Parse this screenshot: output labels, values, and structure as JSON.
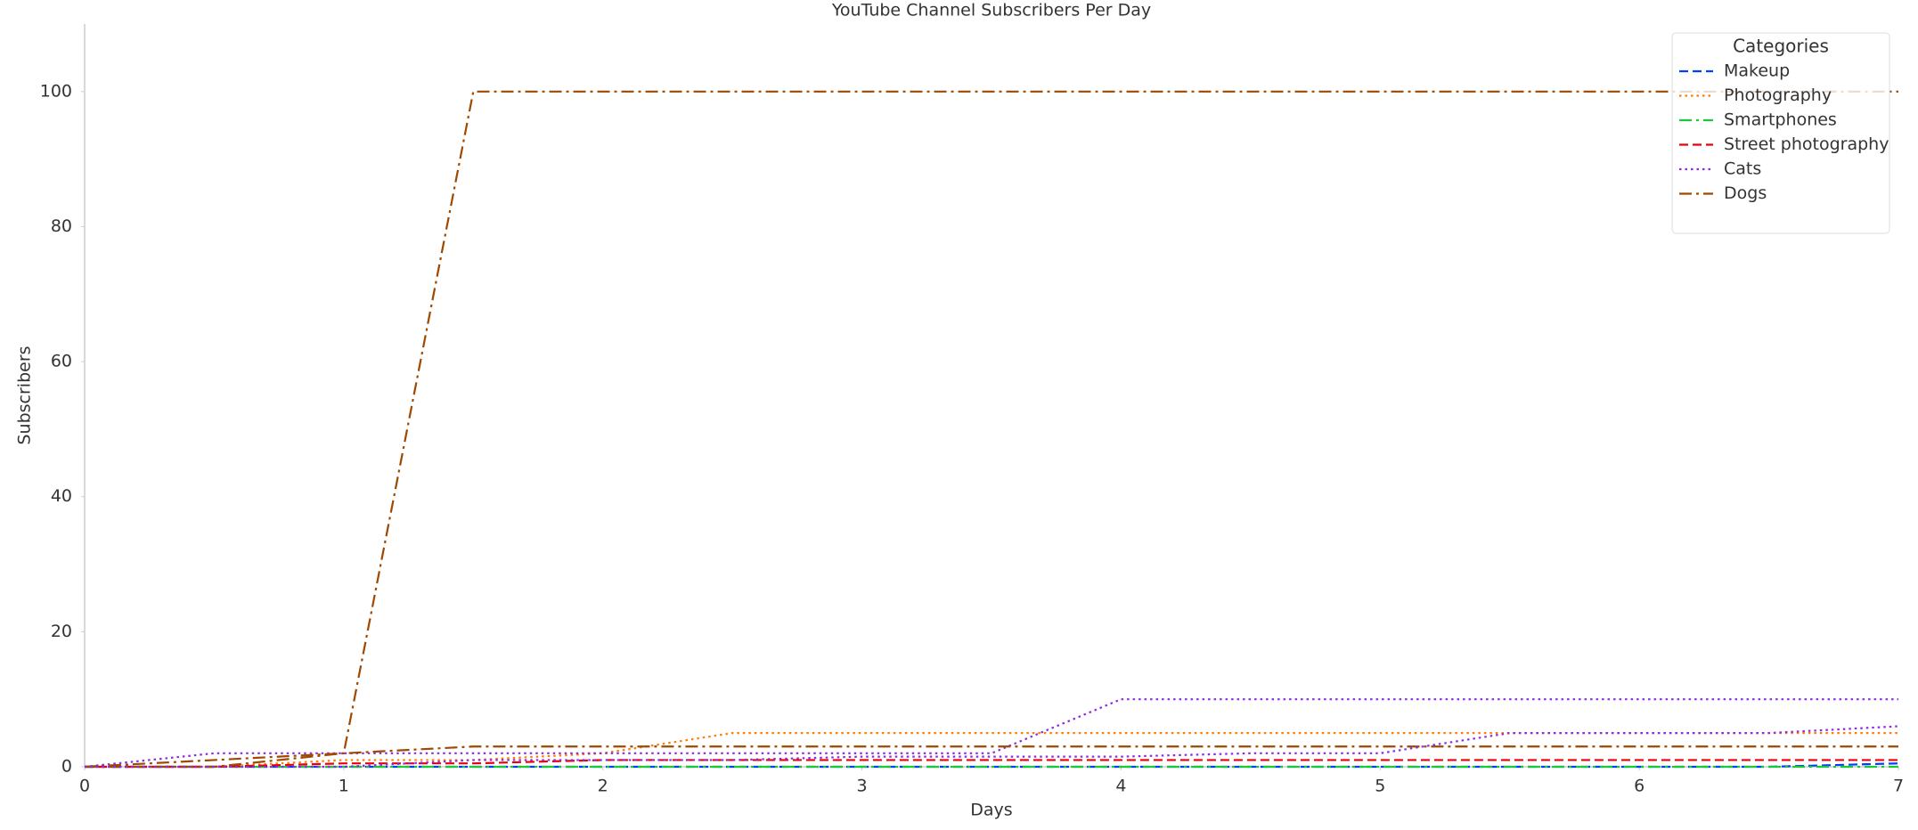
{
  "chart_data": {
    "type": "line",
    "title": "YouTube Channel Subscribers Per Day",
    "x_label": "Days",
    "y_label": "Subscribers",
    "x": [
      0,
      0.5,
      1,
      1.5,
      2,
      2.5,
      3,
      3.5,
      4,
      4.5,
      5,
      5.5,
      6,
      6.5,
      7
    ],
    "xlim": [
      0,
      7
    ],
    "xticks": [
      0,
      1,
      2,
      3,
      4,
      5,
      6,
      7
    ],
    "ylim": [
      0,
      110
    ],
    "yticks": [
      0,
      20,
      40,
      60,
      80,
      100
    ],
    "grid": false,
    "legend_title": "Categories",
    "legend_position": "upper right",
    "series": [
      {
        "name": "Makeup",
        "color": "#023eff",
        "linestyle": "dashed",
        "values": [
          0,
          0,
          0,
          0,
          0,
          0,
          0,
          0,
          0,
          0,
          0,
          0,
          0,
          0,
          0.5
        ]
      },
      {
        "name": "Photography",
        "color": "#ff7c00",
        "linestyle": "dotted",
        "values": [
          0,
          0,
          1,
          1,
          2,
          5,
          5,
          5,
          5,
          5,
          5,
          5,
          5,
          5,
          5
        ]
      },
      {
        "name": "Smartphones",
        "color": "#1ac938",
        "linestyle": "dashdot",
        "values": [
          0,
          0,
          0,
          0,
          0,
          0,
          0,
          0,
          0,
          0,
          0,
          0,
          0,
          0,
          0
        ]
      },
      {
        "name": "Street photography",
        "color": "#e8000b",
        "linestyle": "dashed",
        "values": [
          0,
          0,
          0.5,
          0.5,
          1,
          1,
          1,
          1,
          1,
          1,
          1,
          1,
          1,
          1,
          1
        ]
      },
      {
        "name": "Cats",
        "color": "#8b2be2",
        "linestyle": "dotted",
        "values": [
          0,
          2,
          2,
          2,
          2,
          2,
          2,
          2,
          10,
          10,
          10,
          10,
          10,
          10,
          10
        ]
      },
      {
        "name": "Dogs",
        "color": "#9f4800",
        "linestyle": "dashdot",
        "values": [
          0,
          0,
          2,
          100,
          100,
          100,
          100,
          100,
          100,
          100,
          100,
          100,
          100,
          100,
          100
        ]
      },
      {
        "color": "#9f4800",
        "linestyle": "dashdot",
        "values": [
          0,
          1,
          2,
          3,
          3,
          3,
          3,
          3,
          3,
          3,
          3,
          3,
          3,
          3,
          3
        ]
      },
      {
        "color": "#8b2be2",
        "linestyle": "dotted",
        "values": [
          0,
          0,
          0,
          1,
          1,
          1,
          1.5,
          1.5,
          1.5,
          2,
          2,
          5,
          5,
          5,
          6
        ]
      }
    ]
  }
}
